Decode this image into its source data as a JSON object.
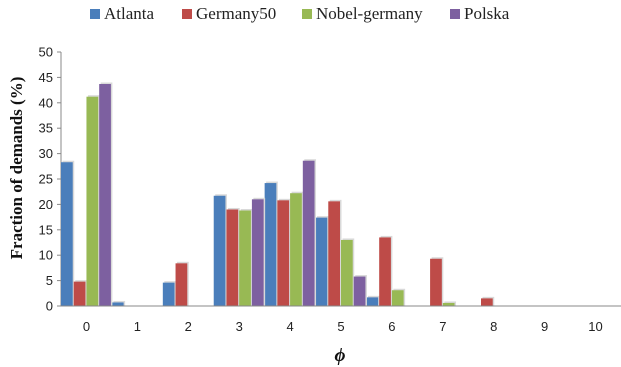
{
  "chart_data": {
    "type": "bar",
    "categories": [
      "0",
      "1",
      "2",
      "3",
      "4",
      "5",
      "6",
      "7",
      "8",
      "9",
      "10"
    ],
    "xlabel": "ϕ",
    "ylabel": "Fraction of demands (%)",
    "ylim": [
      0,
      50
    ],
    "yticks": [
      "0",
      "5",
      "10",
      "15",
      "20",
      "25",
      "30",
      "35",
      "40",
      "45",
      "50"
    ],
    "grid": false,
    "legend_position": "top",
    "series": [
      {
        "name": "Atlanta",
        "color": "#4a7ebb",
        "values": [
          28.3,
          0.7,
          4.6,
          21.7,
          24.2,
          17.4,
          1.7,
          0,
          0,
          0,
          0
        ]
      },
      {
        "name": "Germany50",
        "color": "#be4b48",
        "values": [
          4.8,
          0,
          8.4,
          19.0,
          20.8,
          20.6,
          13.5,
          9.3,
          1.5,
          0,
          0
        ]
      },
      {
        "name": "Nobel-germany",
        "color": "#98b954",
        "values": [
          41.2,
          0,
          0,
          18.8,
          22.2,
          13.0,
          3.1,
          0.6,
          0,
          0,
          0
        ]
      },
      {
        "name": "Polska",
        "color": "#7d60a0",
        "values": [
          43.7,
          0,
          0,
          21.0,
          28.6,
          5.8,
          0,
          0,
          0,
          0,
          0
        ]
      }
    ]
  }
}
